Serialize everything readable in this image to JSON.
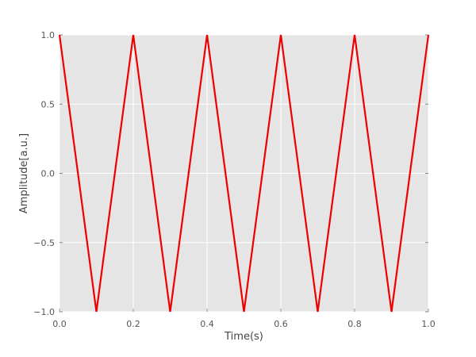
{
  "chart_data": {
    "type": "line",
    "title": "",
    "xlabel": "Time(s)",
    "ylabel": "Amplitude[a.u.]",
    "xlim": [
      0.0,
      1.0
    ],
    "ylim": [
      -1.0,
      1.0
    ],
    "grid": true,
    "background": "#e5e5e5",
    "grid_color": "#ffffff",
    "xticks": [
      0.0,
      0.2,
      0.4,
      0.6,
      0.8,
      1.0
    ],
    "xtick_labels": [
      "0.0",
      "0.2",
      "0.4",
      "0.6",
      "0.8",
      "1.0"
    ],
    "yticks": [
      1.0,
      0.5,
      0.0,
      -0.5,
      -1.0
    ],
    "ytick_labels": [
      "1.0",
      "0.5",
      "0.0",
      "−0.5",
      "−1.0"
    ],
    "series": [
      {
        "color": "#ee0000",
        "x": [
          0.0,
          0.1,
          0.2,
          0.3,
          0.4,
          0.5,
          0.6,
          0.7,
          0.8,
          0.9,
          1.0
        ],
        "y": [
          1.0,
          -1.0,
          1.0,
          -1.0,
          1.0,
          -1.0,
          1.0,
          -1.0,
          1.0,
          -1.0,
          1.0
        ]
      }
    ]
  }
}
